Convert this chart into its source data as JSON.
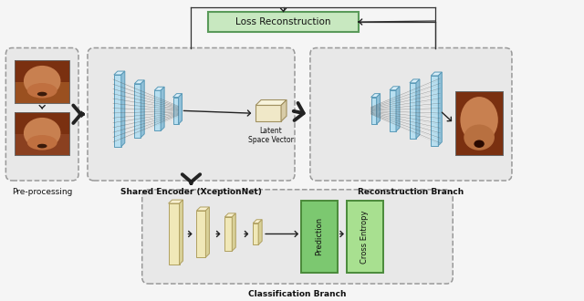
{
  "bg_color": "#f5f5f5",
  "box_fill": "#e8e8e8",
  "box_edge": "#999999",
  "loss_fill": "#c8e8c0",
  "loss_edge": "#5a9a5a",
  "pred_fill": "#7cc870",
  "pred_edge": "#4a8a3a",
  "ce_fill": "#a8e090",
  "ce_edge": "#4a8a3a",
  "cyan_front": "#b8dff0",
  "cyan_top": "#d8eef8",
  "cyan_side": "#90c0d8",
  "cyan_edge": "#5a9ab8",
  "yellow_front": "#f0e8b8",
  "yellow_top": "#f8f0d0",
  "yellow_side": "#d8d098",
  "yellow_edge": "#b0a060",
  "latent_front": "#f0e8c8",
  "latent_top": "#f8f4dc",
  "latent_side": "#d8cca8",
  "latent_edge": "#a09060",
  "arrow_col": "#222222",
  "line_col": "#333333",
  "text_col": "#111111",
  "pre_label": "Pre-processing",
  "enc_label": "Shared Encoder (XceptionNet)",
  "rec_label": "Reconstruction Branch",
  "cls_label": "Classification Branch",
  "latent_label": "Latent\nSpace Vector",
  "loss_label": "Loss Reconstruction",
  "pred_label": "Prediction",
  "ce_label": "Cross Entropy"
}
